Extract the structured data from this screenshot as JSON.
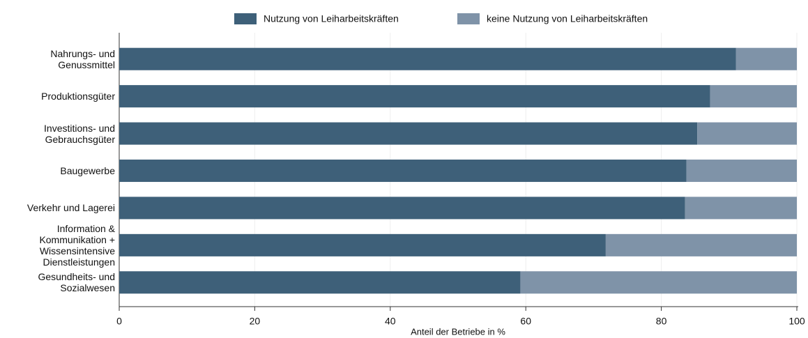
{
  "chart_data": {
    "type": "stacked_barh",
    "xlabel": "Anteil der Betriebe in %",
    "categories": [
      "Nahrungs- und\nGenussmittel",
      "Produktionsgüter",
      "Investitions- und\nGebrauchsgüter",
      "Baugewerbe",
      "Verkehr und Lagerei",
      "Information &\nKommunikation +\nWissensintensive\nDienstleistungen",
      "Gesundheits- und\nSozialwesen"
    ],
    "series": [
      {
        "name": "Nutzung von Leiharbeitskräften",
        "color": "#3e6079",
        "values": [
          91.0,
          87.2,
          85.3,
          83.7,
          83.5,
          71.8,
          59.2
        ]
      },
      {
        "name": "keine Nutzung von Leiharbeitskräften",
        "color": "#7f93a8",
        "values": [
          9.0,
          12.8,
          14.7,
          16.3,
          16.5,
          28.2,
          40.8
        ]
      }
    ],
    "xlim": [
      0,
      100
    ],
    "xticks": [
      0,
      20,
      40,
      60,
      80,
      100
    ],
    "grid": true,
    "legend": "top"
  }
}
